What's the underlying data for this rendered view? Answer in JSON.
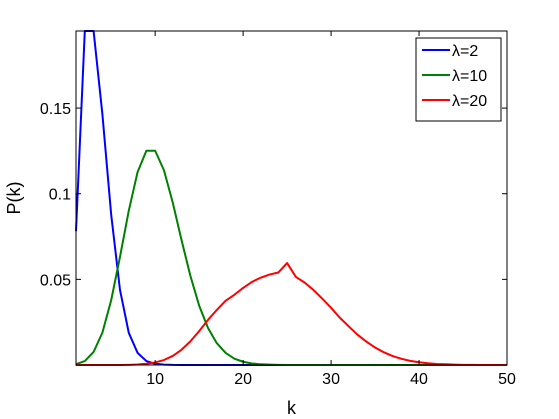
{
  "chart_data": {
    "type": "line",
    "xlabel": "k",
    "ylabel": "P(k)",
    "xlim": [
      1,
      50
    ],
    "ylim": [
      0,
      0.195
    ],
    "xticks": [
      10,
      20,
      30,
      40,
      50
    ],
    "yticks": [
      0.05,
      0.1,
      0.15
    ],
    "ytick_labels": [
      "0.05",
      "0.1",
      "0.15"
    ],
    "grid": false,
    "legend_position": "top-right",
    "x": [
      1,
      2,
      3,
      4,
      5,
      6,
      7,
      8,
      9,
      10,
      11,
      12,
      13,
      14,
      15,
      16,
      17,
      18,
      19,
      20,
      21,
      22,
      23,
      24,
      25,
      26,
      27,
      28,
      29,
      30,
      31,
      32,
      33,
      34,
      35,
      36,
      37,
      38,
      39,
      40,
      41,
      42,
      43,
      44,
      45,
      46,
      47,
      48,
      49,
      50
    ],
    "series": [
      {
        "name": "λ=2",
        "color": "#0000ff",
        "values": [
          0.0781,
          0.1952,
          0.1952,
          0.1464,
          0.0878,
          0.0439,
          0.0188,
          0.0071,
          0.0023,
          0.0007,
          0.0002,
          4e-05,
          1e-05,
          0,
          0,
          0,
          0,
          0,
          0,
          0,
          0,
          0,
          0,
          0,
          0,
          0,
          0,
          0,
          0,
          0,
          0,
          0,
          0,
          0,
          0,
          0,
          0,
          0,
          0,
          0,
          0,
          0,
          0,
          0,
          0,
          0,
          0,
          0,
          0,
          0
        ]
      },
      {
        "name": "λ=10",
        "color": "#008000",
        "values": [
          0.0005,
          0.0023,
          0.0076,
          0.0189,
          0.0378,
          0.0631,
          0.0901,
          0.1126,
          0.1251,
          0.1251,
          0.1137,
          0.0948,
          0.0729,
          0.0521,
          0.0347,
          0.0217,
          0.0128,
          0.0071,
          0.0037,
          0.0019,
          0.0009,
          0.0004,
          0.0002,
          0.0001,
          0,
          0,
          0,
          0,
          0,
          0,
          0,
          0,
          0,
          0,
          0,
          0,
          0,
          0,
          0,
          0,
          0,
          0,
          0,
          0,
          0,
          0,
          0,
          0,
          0,
          0
        ]
      },
      {
        "name": "λ=20",
        "color": "#ff0000",
        "values": [
          0,
          0,
          0,
          0,
          0,
          0,
          0.0001,
          0.0003,
          0.0007,
          0.0015,
          0.0029,
          0.0053,
          0.0089,
          0.0138,
          0.0198,
          0.0263,
          0.0321,
          0.0375,
          0.041,
          0.045,
          0.0485,
          0.051,
          0.0528,
          0.054,
          0.0595,
          0.0514,
          0.0481,
          0.0438,
          0.0387,
          0.0334,
          0.0276,
          0.0226,
          0.0177,
          0.0137,
          0.0102,
          0.0074,
          0.0052,
          0.0036,
          0.0024,
          0.0016,
          0.001,
          0.0006,
          0.0004,
          0.0002,
          0.0001,
          0.0001,
          0,
          0,
          0,
          0
        ]
      }
    ]
  }
}
